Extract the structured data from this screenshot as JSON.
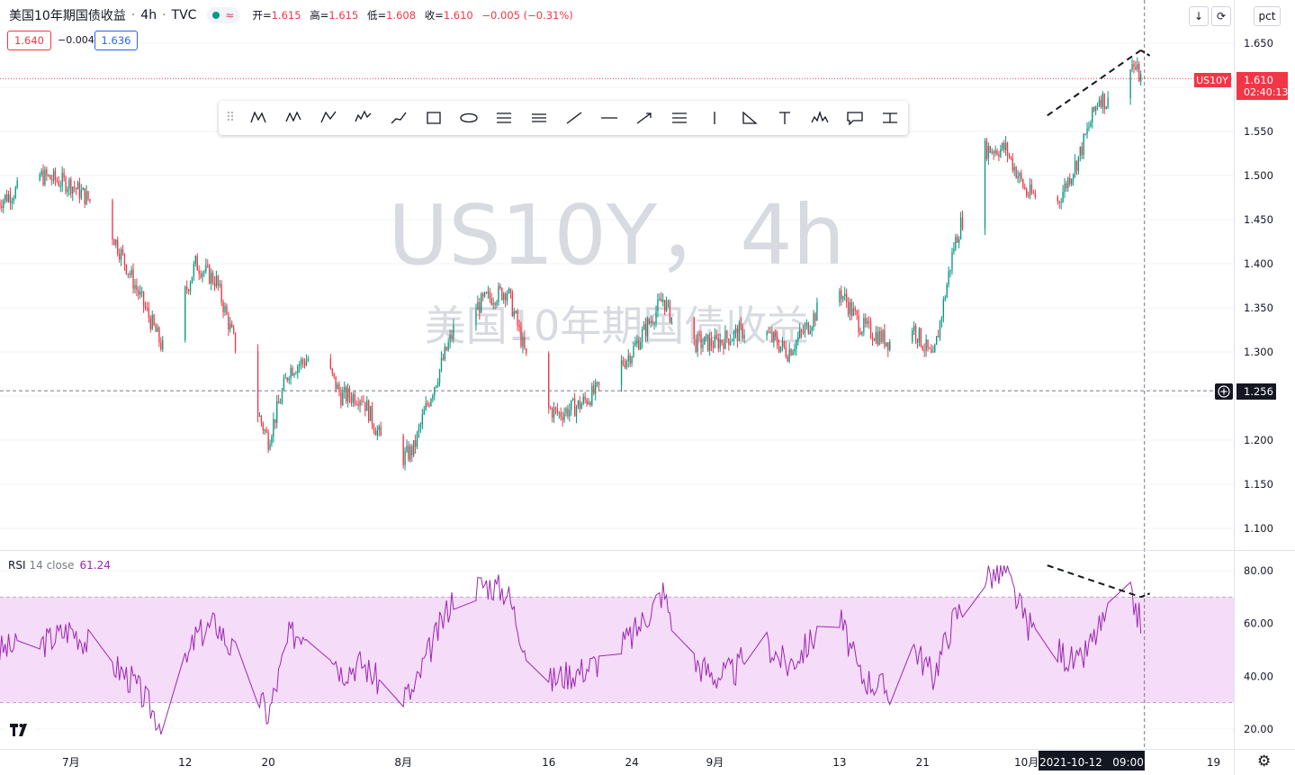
{
  "header": {
    "symbol_name": "美国10年期国债收益",
    "interval": "4h",
    "exchange": "TVC",
    "toggle_icon_text": "≈",
    "ohlc_labels": [
      "开=",
      "高=",
      "低=",
      "收="
    ],
    "ohlc_values": [
      "1.615",
      "1.615",
      "1.608",
      "1.610"
    ],
    "change": "−0.005 (−0.31%)"
  },
  "price_boxes": {
    "sell": "1.640",
    "spread": "−0.004",
    "buy": "1.636"
  },
  "watermark": {
    "line1": "US10Y，4h",
    "line2": "美国10年期国债收益"
  },
  "toolbar": {
    "icons": [
      "xabcd-pattern-icon",
      "cypher-pattern-icon",
      "abcd-pattern-icon",
      "elliott-wave-icon",
      "path-icon",
      "rectangle-icon",
      "ellipse-icon",
      "fib-retracement-icon",
      "fib-channel-icon",
      "trend-line-icon",
      "horizontal-line-icon",
      "arrow-icon",
      "parallel-channel-icon",
      "vertical-line-icon",
      "triangle-icon",
      "text-icon",
      "head-shoulders-icon",
      "callout-icon",
      "price-range-icon"
    ]
  },
  "top_right": {
    "scroll_icon": "↓",
    "refresh_icon": "⟳",
    "scale_mode": "pct"
  },
  "price_axis": {
    "ticks": [
      "1.650",
      "1.600",
      "1.550",
      "1.500",
      "1.450",
      "1.400",
      "1.350",
      "1.300",
      "1.250",
      "1.200",
      "1.150",
      "1.100"
    ],
    "last_label": "US10Y",
    "last_price": "1.610",
    "countdown": "02:40:13",
    "crosshair_price": "1.256"
  },
  "rsi": {
    "label": "RSI",
    "params": "14 close",
    "value": "61.24",
    "ticks": [
      "80.00",
      "60.00",
      "40.00",
      "20.00"
    ],
    "upper_band": 70,
    "lower_band": 30
  },
  "time_axis": {
    "labels": [
      "7月",
      "12",
      "20",
      "8月",
      "16",
      "24",
      "9月",
      "13",
      "21",
      "10月",
      "19"
    ],
    "crosshair_time": "2021-10-12   09:00"
  },
  "colors": {
    "up": "#089981",
    "down": "#f23645",
    "rsi_line": "#9c27b0",
    "rsi_band": "#f5dcf9",
    "accent_blue": "#2962ff"
  },
  "chart_data": {
    "type": "candlestick",
    "symbol": "US10Y",
    "interval": "4h",
    "y_range": [
      1.08,
      1.67
    ],
    "x_range": [
      "2021-06-24",
      "2021-10-20"
    ],
    "close_anchors": {
      "dates": [
        "2021-06-24",
        "2021-06-28",
        "2021-07-01",
        "2021-07-04",
        "2021-07-07",
        "2021-07-10",
        "2021-07-13",
        "2021-07-15",
        "2021-07-18",
        "2021-07-20",
        "2021-07-22",
        "2021-07-25",
        "2021-07-27",
        "2021-07-29",
        "2021-08-01",
        "2021-08-03",
        "2021-08-04",
        "2021-08-07",
        "2021-08-10",
        "2021-08-12",
        "2021-08-13",
        "2021-08-15",
        "2021-08-17",
        "2021-08-19",
        "2021-08-21",
        "2021-08-24",
        "2021-08-27",
        "2021-08-29",
        "2021-09-01",
        "2021-09-03",
        "2021-09-05",
        "2021-09-08",
        "2021-09-10",
        "2021-09-12",
        "2021-09-13",
        "2021-09-15",
        "2021-09-18",
        "2021-09-20",
        "2021-09-22",
        "2021-09-24",
        "2021-09-27",
        "2021-09-29",
        "2021-10-01",
        "2021-10-04",
        "2021-10-06",
        "2021-10-08",
        "2021-10-10",
        "2021-10-11",
        "2021-10-12"
      ],
      "values": [
        1.47,
        1.5,
        1.49,
        1.46,
        1.38,
        1.3,
        1.4,
        1.38,
        1.26,
        1.2,
        1.28,
        1.3,
        1.25,
        1.25,
        1.17,
        1.19,
        1.23,
        1.33,
        1.36,
        1.37,
        1.33,
        1.24,
        1.23,
        1.24,
        1.26,
        1.3,
        1.36,
        1.31,
        1.31,
        1.32,
        1.33,
        1.3,
        1.33,
        1.37,
        1.37,
        1.33,
        1.31,
        1.33,
        1.29,
        1.42,
        1.53,
        1.53,
        1.48,
        1.47,
        1.52,
        1.59,
        1.57,
        1.63,
        1.61
      ]
    },
    "rsi_series": {
      "y_range": [
        15,
        85
      ],
      "dates": [
        "2021-06-24",
        "2021-06-28",
        "2021-07-01",
        "2021-07-04",
        "2021-07-07",
        "2021-07-10",
        "2021-07-13",
        "2021-07-15",
        "2021-07-18",
        "2021-07-20",
        "2021-07-22",
        "2021-07-25",
        "2021-07-27",
        "2021-07-29",
        "2021-08-01",
        "2021-08-03",
        "2021-08-04",
        "2021-08-07",
        "2021-08-10",
        "2021-08-12",
        "2021-08-13",
        "2021-08-15",
        "2021-08-17",
        "2021-08-19",
        "2021-08-21",
        "2021-08-24",
        "2021-08-27",
        "2021-08-29",
        "2021-09-01",
        "2021-09-03",
        "2021-09-05",
        "2021-09-08",
        "2021-09-10",
        "2021-09-12",
        "2021-09-13",
        "2021-09-15",
        "2021-09-18",
        "2021-09-20",
        "2021-09-22",
        "2021-09-24",
        "2021-09-27",
        "2021-09-29",
        "2021-10-01",
        "2021-10-04",
        "2021-10-06",
        "2021-10-08",
        "2021-10-10",
        "2021-10-11",
        "2021-10-12"
      ],
      "values": [
        50,
        52,
        58,
        48,
        38,
        20,
        55,
        60,
        40,
        25,
        55,
        60,
        42,
        45,
        32,
        34,
        45,
        72,
        75,
        72,
        60,
        35,
        40,
        42,
        46,
        55,
        72,
        48,
        40,
        42,
        56,
        44,
        52,
        64,
        62,
        40,
        34,
        52,
        40,
        62,
        78,
        79,
        60,
        50,
        44,
        58,
        68,
        70,
        61
      ]
    },
    "annotations": [
      {
        "type": "trend_line",
        "pane": "price",
        "from": [
          "2021-10-03",
          1.568
        ],
        "to": [
          "2021-10-12",
          1.642
        ]
      },
      {
        "type": "trend_line",
        "pane": "rsi",
        "from": [
          "2021-10-03",
          82
        ],
        "to": [
          "2021-10-12",
          70
        ]
      }
    ],
    "crosshair": {
      "date": "2021-10-12",
      "price": 1.256
    }
  }
}
